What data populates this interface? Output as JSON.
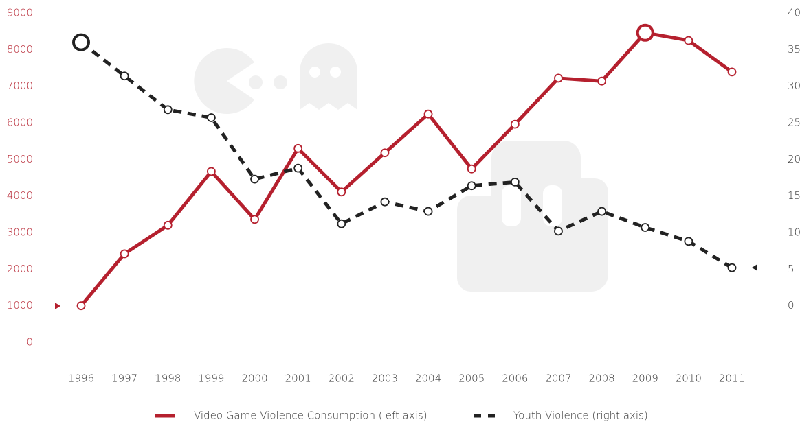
{
  "chart_data": {
    "type": "line",
    "categories": [
      "1996",
      "1997",
      "1998",
      "1999",
      "2000",
      "2001",
      "2002",
      "2003",
      "2004",
      "2005",
      "2006",
      "2007",
      "2008",
      "2009",
      "2010",
      "2011"
    ],
    "series": [
      {
        "name": "Video Game Violence Consumption (left axis)",
        "color": "#b5202e",
        "axis": "y",
        "dash": false,
        "values": [
          1000,
          2420,
          3200,
          4670,
          3360,
          5300,
          4110,
          5180,
          6240,
          4740,
          5960,
          7220,
          7140,
          8460,
          8250,
          7390
        ]
      },
      {
        "name": "Youth Violence (right axis)",
        "color": "#222222",
        "axis": "y2",
        "dash": true,
        "values": [
          36.0,
          31.4,
          26.8,
          25.7,
          17.3,
          18.8,
          11.2,
          14.2,
          12.9,
          16.4,
          16.9,
          10.2,
          12.9,
          10.7,
          8.8,
          5.2
        ]
      }
    ],
    "ylim": [
      0,
      9000
    ],
    "yticks": [
      0,
      1000,
      2000,
      3000,
      4000,
      5000,
      6000,
      7000,
      8000,
      9000
    ],
    "y2lim": [
      -5,
      40
    ],
    "y2ticks": [
      0,
      5,
      10,
      15,
      20,
      25,
      30,
      35,
      40
    ],
    "grid": false,
    "legend": "bottom"
  }
}
